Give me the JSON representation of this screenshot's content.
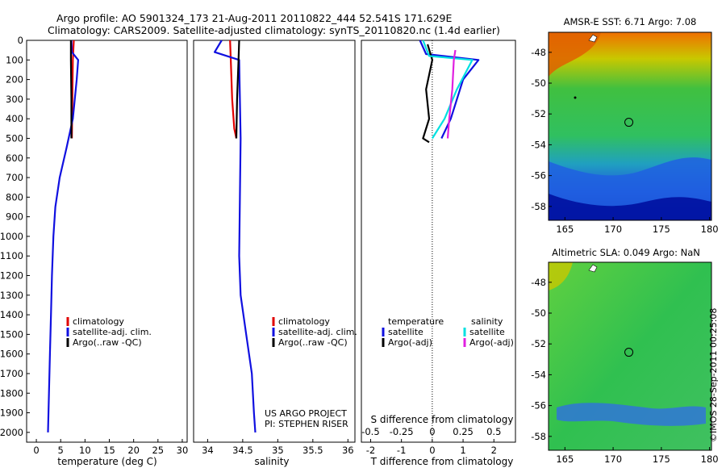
{
  "header": {
    "line1": "Argo profile: AO 5901324_173 21-Aug-2011 20110822_444 52.541S 171.629E",
    "line2": "Climatology: CARS2009. Satellite-adjusted climatology: synTS_20110820.nc (1.4d earlier)"
  },
  "credit": {
    "project": "US ARGO PROJECT",
    "pi": "PI: STEPHEN RISER"
  },
  "stamp": "©IMOS 28-Sep-2011 00:25:08",
  "colors": {
    "climatology": "#e00000",
    "satellite": "#1010e0",
    "argo": "#000000",
    "salinity_satellite": "#00e0e0",
    "salinity_argo": "#e020e0"
  },
  "chart_data": [
    {
      "type": "line",
      "xlabel": "temperature (deg C)",
      "ylabel": "",
      "xlim": [
        -2,
        31
      ],
      "ylim": [
        2050,
        0
      ],
      "xticks": [
        0,
        5,
        10,
        15,
        20,
        25,
        30
      ],
      "yticks": [
        0,
        100,
        200,
        300,
        400,
        500,
        600,
        700,
        800,
        900,
        1000,
        1100,
        1200,
        1300,
        1400,
        1500,
        1600,
        1700,
        1800,
        1900,
        2000
      ],
      "legend": [
        "climatology",
        "satellite-adj. clim.",
        "Argo(..raw -QC)"
      ],
      "series": [
        {
          "name": "climatology",
          "x": [
            7.7,
            7.6,
            7.5,
            7.4,
            7.3
          ],
          "y": [
            0,
            50,
            100,
            300,
            500
          ]
        },
        {
          "name": "satellite-adj. clim.",
          "x": [
            7.2,
            7.3,
            8.6,
            8.3,
            7.5,
            6.2,
            4.8,
            3.9,
            3.5,
            3.2,
            3.0,
            2.8,
            2.6,
            2.4
          ],
          "y": [
            0,
            60,
            100,
            200,
            400,
            550,
            700,
            850,
            1000,
            1200,
            1400,
            1600,
            1800,
            2000
          ]
        },
        {
          "name": "Argo(..raw -QC)",
          "x": [
            7.1,
            7.1,
            7.2,
            7.2
          ],
          "y": [
            0,
            100,
            300,
            500
          ]
        }
      ]
    },
    {
      "type": "line",
      "xlabel": "salinity",
      "ylabel": "",
      "xlim": [
        33.8,
        36.1
      ],
      "ylim": [
        2050,
        0
      ],
      "xticks": [
        34,
        34.5,
        35,
        35.5,
        36
      ],
      "legend": [
        "climatology",
        "satellite-adj. clim.",
        "Argo(..raw -QC)"
      ],
      "series": [
        {
          "name": "climatology",
          "x": [
            34.32,
            34.33,
            34.35,
            34.38,
            34.41
          ],
          "y": [
            0,
            100,
            300,
            450,
            500
          ]
        },
        {
          "name": "satellite-adj. clim.",
          "x": [
            34.2,
            34.1,
            34.45,
            34.46,
            34.47,
            34.46,
            34.45,
            34.47,
            34.55,
            34.63,
            34.66,
            34.68
          ],
          "y": [
            0,
            60,
            100,
            300,
            500,
            800,
            1100,
            1300,
            1500,
            1700,
            1900,
            2000
          ]
        },
        {
          "name": "Argo(..raw -QC)",
          "x": [
            34.45,
            34.44,
            34.42,
            34.41
          ],
          "y": [
            0,
            100,
            300,
            500
          ]
        }
      ]
    },
    {
      "type": "line",
      "xlabel": "T difference from climatology",
      "x2label": "S difference from climatology",
      "ylabel": "",
      "xlim": [
        -2.3,
        2.7
      ],
      "ylim": [
        2050,
        0
      ],
      "xticks": [
        -2,
        -1,
        0,
        1,
        2
      ],
      "x2ticks": [
        -0.5,
        -0.25,
        0,
        0.25,
        0.5
      ],
      "legend_headings": [
        "temperature",
        "salinity"
      ],
      "legend": [
        "satellite",
        "Argo(-adj)",
        "satellite",
        "Argo(-adj)"
      ],
      "series": [
        {
          "name": "satellite",
          "group": "temperature",
          "x": [
            -0.4,
            -0.2,
            1.5,
            1.0,
            0.6,
            0.3
          ],
          "y": [
            0,
            70,
            100,
            200,
            400,
            500
          ]
        },
        {
          "name": "Argo(-adj)",
          "group": "temperature",
          "x": [
            -0.15,
            0.0,
            -0.2,
            -0.1,
            -0.3,
            -0.1
          ],
          "y": [
            20,
            100,
            250,
            400,
            500,
            520
          ]
        },
        {
          "name": "satellite",
          "group": "salinity",
          "x": [
            -0.3,
            -0.1,
            1.3,
            0.8,
            0.4,
            0.0
          ],
          "y": [
            0,
            80,
            100,
            250,
            400,
            500
          ]
        },
        {
          "name": "Argo(-adj)",
          "group": "salinity",
          "x": [
            0.75,
            0.7,
            0.65,
            0.55,
            0.5
          ],
          "y": [
            50,
            100,
            250,
            400,
            500
          ]
        }
      ]
    },
    {
      "type": "heatmap",
      "title": "AMSR-E SST: 6.71 Argo: 7.08",
      "xlim": [
        163.3,
        180.2
      ],
      "ylim": [
        -58.9,
        -46.7
      ],
      "xticks": [
        165,
        170,
        175,
        180
      ],
      "yticks": [
        -48,
        -50,
        -52,
        -54,
        -56,
        -58
      ],
      "marker": {
        "lon": 171.629,
        "lat": -52.541
      }
    },
    {
      "type": "heatmap",
      "title": "Altimetric SLA: 0.049 Argo: NaN",
      "xlim": [
        163.3,
        180.2
      ],
      "ylim": [
        -58.9,
        -46.7
      ],
      "xticks": [
        165,
        170,
        175,
        180
      ],
      "yticks": [
        -48,
        -50,
        -52,
        -54,
        -56,
        -58
      ],
      "marker": {
        "lon": 171.629,
        "lat": -52.541
      }
    }
  ]
}
